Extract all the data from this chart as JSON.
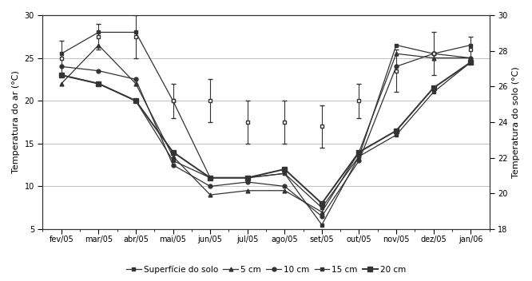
{
  "months": [
    "fev/05",
    "mar/05",
    "abr/05",
    "mai/05",
    "jun/05",
    "jul/05",
    "ago/05",
    "set/05",
    "out/05",
    "nov/05",
    "dez/05",
    "jan/06"
  ],
  "x_indices": [
    0,
    1,
    2,
    3,
    4,
    5,
    6,
    7,
    8,
    9,
    10,
    11
  ],
  "air_temp_mean": [
    25.0,
    27.5,
    27.5,
    20.0,
    20.0,
    17.5,
    17.5,
    17.0,
    20.0,
    23.5,
    25.5,
    26.0
  ],
  "air_temp_std": [
    2.0,
    1.5,
    2.5,
    2.0,
    2.5,
    2.5,
    2.5,
    2.5,
    2.0,
    2.5,
    2.5,
    1.5
  ],
  "surf_temp": [
    25.5,
    28.0,
    28.0,
    20.0,
    11.0,
    11.0,
    11.5,
    5.5,
    13.5,
    26.5,
    25.5,
    26.5
  ],
  "depth_5cm": [
    22.0,
    26.5,
    22.0,
    13.5,
    9.0,
    9.5,
    9.5,
    7.0,
    14.0,
    25.5,
    25.0,
    25.0
  ],
  "depth_10cm": [
    24.0,
    23.5,
    22.5,
    12.5,
    10.0,
    10.5,
    10.0,
    6.5,
    13.0,
    24.0,
    25.5,
    25.0
  ],
  "depth_15cm": [
    23.0,
    22.0,
    20.0,
    13.0,
    11.0,
    11.0,
    11.5,
    7.5,
    13.5,
    16.0,
    21.0,
    24.5
  ],
  "depth_20cm": [
    23.0,
    22.0,
    20.0,
    14.0,
    11.0,
    11.0,
    12.0,
    8.0,
    14.0,
    16.5,
    21.5,
    24.5
  ],
  "ylabel_left": "Temperatura do ar (°C)",
  "ylabel_right": "Temperatura do solo (°C)",
  "ylim_left": [
    5,
    30
  ],
  "ylim_right": [
    18,
    30
  ],
  "yticks_left": [
    5,
    10,
    15,
    20,
    25,
    30
  ],
  "yticks_right": [
    18,
    20,
    22,
    24,
    26,
    28,
    30
  ],
  "line_color": "#333333",
  "bg_color": "#ffffff",
  "legend_labels": [
    "Superfície do solo",
    "5 cm",
    "10 cm",
    "15 cm",
    "20 cm"
  ],
  "fontsize_axis": 8,
  "fontsize_tick": 7,
  "fontsize_legend": 7.5
}
